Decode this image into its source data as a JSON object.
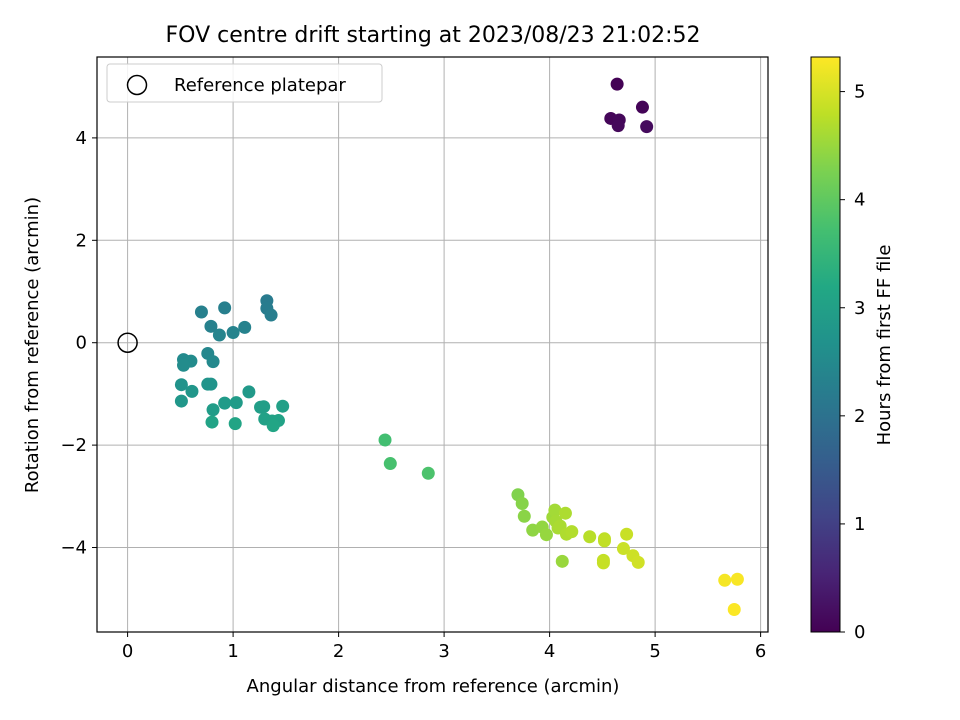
{
  "chart_data": {
    "type": "scatter",
    "title": "FOV centre drift starting at 2023/08/23 21:02:52",
    "xlabel": "Angular distance from reference (arcmin)",
    "ylabel": "Rotation from reference (arcmin)",
    "xlim": [
      -0.29,
      6.07
    ],
    "ylim": [
      -5.65,
      5.58
    ],
    "xticks": [
      0,
      1,
      2,
      3,
      4,
      5,
      6
    ],
    "yticks": [
      -4,
      -2,
      0,
      2,
      4
    ],
    "grid": true,
    "legend": {
      "position": "top-left",
      "label": "Reference platepar"
    },
    "reference_point": {
      "x": 0,
      "y": 0
    },
    "colorbar": {
      "label": "Hours from first FF file",
      "range": [
        0,
        5.32
      ],
      "ticks": [
        0,
        1,
        2,
        3,
        4,
        5
      ],
      "colormap": "viridis"
    },
    "points": [
      {
        "x": 4.64,
        "y": 5.05,
        "t": 0.02
      },
      {
        "x": 4.88,
        "y": 4.6,
        "t": 0.05
      },
      {
        "x": 4.58,
        "y": 4.38,
        "t": 0.08
      },
      {
        "x": 4.66,
        "y": 4.35,
        "t": 0.1
      },
      {
        "x": 4.65,
        "y": 4.24,
        "t": 0.12
      },
      {
        "x": 4.92,
        "y": 4.22,
        "t": 0.15
      },
      {
        "x": 1.32,
        "y": 0.82,
        "t": 2.2
      },
      {
        "x": 1.32,
        "y": 0.67,
        "t": 2.22
      },
      {
        "x": 1.36,
        "y": 0.54,
        "t": 2.25
      },
      {
        "x": 0.92,
        "y": 0.68,
        "t": 2.28
      },
      {
        "x": 0.7,
        "y": 0.6,
        "t": 2.3
      },
      {
        "x": 0.79,
        "y": 0.32,
        "t": 2.32
      },
      {
        "x": 1.11,
        "y": 0.3,
        "t": 2.34
      },
      {
        "x": 1.0,
        "y": 0.2,
        "t": 2.36
      },
      {
        "x": 0.87,
        "y": 0.15,
        "t": 2.38
      },
      {
        "x": 0.76,
        "y": -0.21,
        "t": 2.45
      },
      {
        "x": 0.81,
        "y": -0.37,
        "t": 2.5
      },
      {
        "x": 0.53,
        "y": -0.33,
        "t": 2.52
      },
      {
        "x": 0.6,
        "y": -0.36,
        "t": 2.54
      },
      {
        "x": 0.53,
        "y": -0.44,
        "t": 2.56
      },
      {
        "x": 0.51,
        "y": -0.82,
        "t": 2.7
      },
      {
        "x": 0.76,
        "y": -0.81,
        "t": 2.72
      },
      {
        "x": 0.79,
        "y": -0.81,
        "t": 2.74
      },
      {
        "x": 0.61,
        "y": -0.95,
        "t": 2.78
      },
      {
        "x": 1.15,
        "y": -0.96,
        "t": 2.85
      },
      {
        "x": 0.51,
        "y": -1.14,
        "t": 2.8
      },
      {
        "x": 0.92,
        "y": -1.18,
        "t": 2.88
      },
      {
        "x": 1.03,
        "y": -1.17,
        "t": 2.9
      },
      {
        "x": 0.81,
        "y": -1.31,
        "t": 2.92
      },
      {
        "x": 1.26,
        "y": -1.26,
        "t": 2.95
      },
      {
        "x": 1.29,
        "y": -1.25,
        "t": 2.97
      },
      {
        "x": 1.47,
        "y": -1.24,
        "t": 3.0
      },
      {
        "x": 1.3,
        "y": -1.49,
        "t": 3.02
      },
      {
        "x": 1.37,
        "y": -1.53,
        "t": 3.04
      },
      {
        "x": 1.43,
        "y": -1.52,
        "t": 3.06
      },
      {
        "x": 0.8,
        "y": -1.55,
        "t": 3.08
      },
      {
        "x": 1.02,
        "y": -1.58,
        "t": 3.1
      },
      {
        "x": 1.38,
        "y": -1.62,
        "t": 3.12
      },
      {
        "x": 2.44,
        "y": -1.9,
        "t": 3.7
      },
      {
        "x": 2.49,
        "y": -2.36,
        "t": 3.75
      },
      {
        "x": 2.85,
        "y": -2.55,
        "t": 3.8
      },
      {
        "x": 3.7,
        "y": -2.97,
        "t": 4.3
      },
      {
        "x": 3.74,
        "y": -3.14,
        "t": 4.35
      },
      {
        "x": 3.76,
        "y": -3.39,
        "t": 4.38
      },
      {
        "x": 3.84,
        "y": -3.66,
        "t": 4.42
      },
      {
        "x": 3.93,
        "y": -3.6,
        "t": 4.45
      },
      {
        "x": 3.97,
        "y": -3.75,
        "t": 4.48
      },
      {
        "x": 4.03,
        "y": -3.41,
        "t": 4.55
      },
      {
        "x": 4.05,
        "y": -3.27,
        "t": 4.58
      },
      {
        "x": 4.06,
        "y": -3.49,
        "t": 4.6
      },
      {
        "x": 4.08,
        "y": -3.62,
        "t": 4.62
      },
      {
        "x": 4.1,
        "y": -3.58,
        "t": 4.64
      },
      {
        "x": 4.15,
        "y": -3.33,
        "t": 4.66
      },
      {
        "x": 4.16,
        "y": -3.74,
        "t": 4.68
      },
      {
        "x": 4.21,
        "y": -3.69,
        "t": 4.7
      },
      {
        "x": 4.12,
        "y": -4.27,
        "t": 4.5
      },
      {
        "x": 4.38,
        "y": -3.79,
        "t": 4.75
      },
      {
        "x": 4.52,
        "y": -3.83,
        "t": 4.8
      },
      {
        "x": 4.52,
        "y": -3.87,
        "t": 4.82
      },
      {
        "x": 4.51,
        "y": -4.25,
        "t": 4.84
      },
      {
        "x": 4.51,
        "y": -4.3,
        "t": 4.86
      },
      {
        "x": 4.73,
        "y": -3.74,
        "t": 4.88
      },
      {
        "x": 4.7,
        "y": -4.02,
        "t": 4.9
      },
      {
        "x": 4.79,
        "y": -4.16,
        "t": 4.92
      },
      {
        "x": 4.84,
        "y": -4.29,
        "t": 4.95
      },
      {
        "x": 5.66,
        "y": -4.64,
        "t": 5.25
      },
      {
        "x": 5.78,
        "y": -4.62,
        "t": 5.28
      },
      {
        "x": 5.75,
        "y": -5.21,
        "t": 5.3
      }
    ]
  }
}
